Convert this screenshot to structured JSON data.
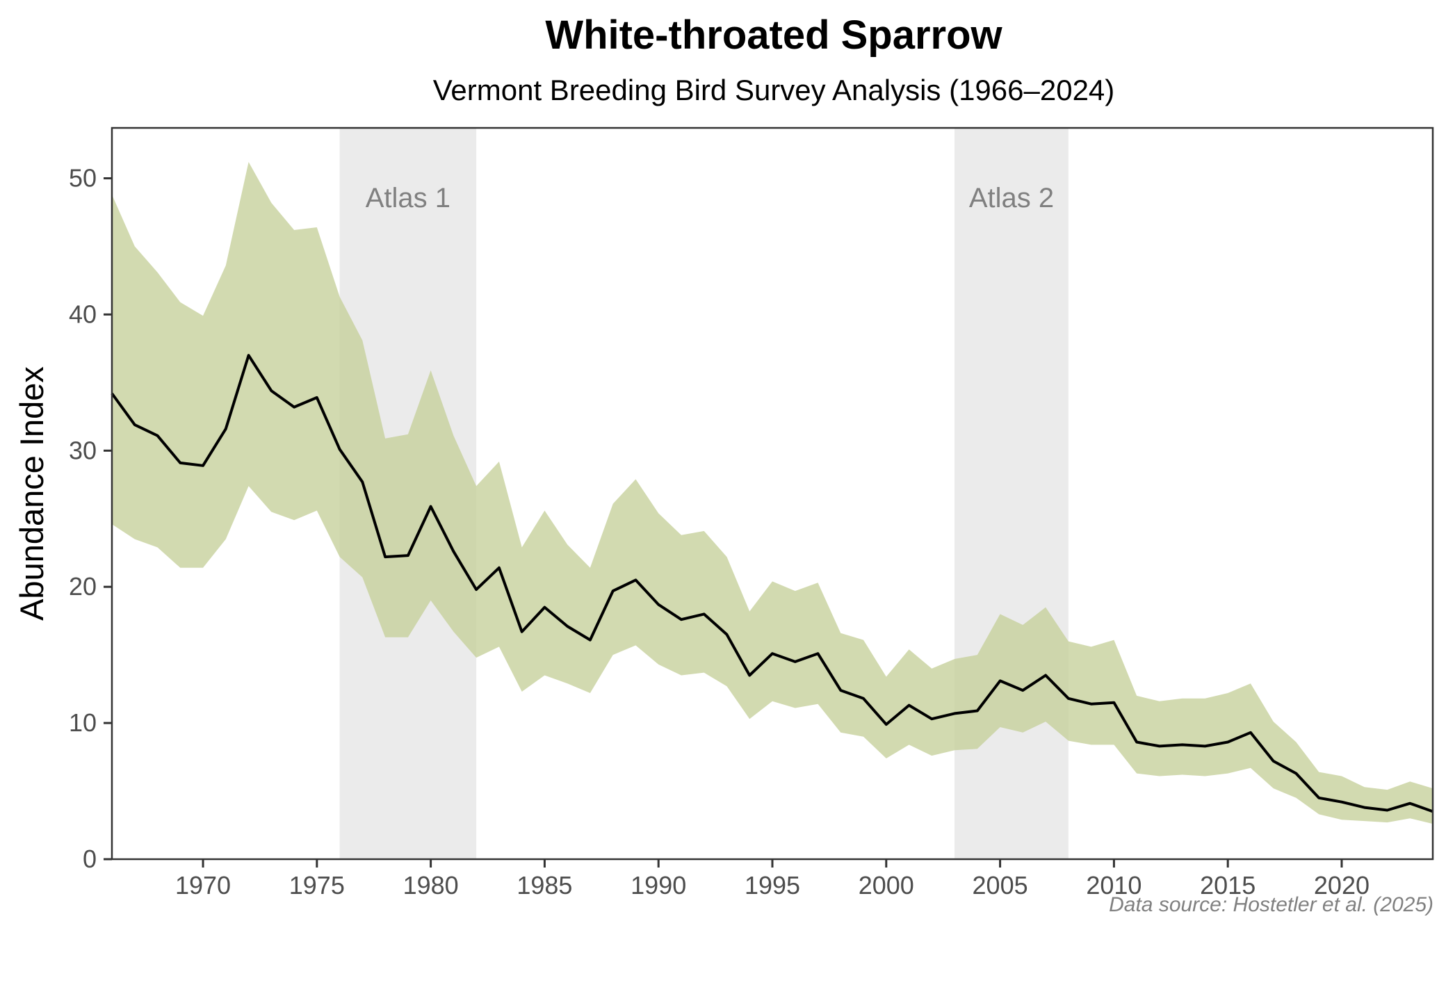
{
  "chart_data": {
    "type": "line",
    "title": "White-throated Sparrow",
    "subtitle": "Vermont Breeding Bird Survey Analysis (1966–2024)",
    "xlabel": "",
    "ylabel": "Abundance Index",
    "xlim": [
      1966,
      2024
    ],
    "ylim": [
      0,
      53.7
    ],
    "x_ticks": [
      1970,
      1975,
      1980,
      1985,
      1990,
      1995,
      2000,
      2005,
      2010,
      2015,
      2020
    ],
    "x_tick_labels": [
      "1970",
      "1975",
      "1980",
      "1985",
      "1990",
      "1995",
      "2000",
      "2005",
      "2010",
      "2015",
      "2020"
    ],
    "y_ticks": [
      0,
      10,
      20,
      30,
      40,
      50
    ],
    "y_tick_labels": [
      "0",
      "10",
      "20",
      "30",
      "40",
      "50"
    ],
    "grid": false,
    "legend": "none",
    "source": "Data source: Hostetler et al. (2025)",
    "shaded_periods": [
      {
        "label": "Atlas 1",
        "start": 1976,
        "end": 1982
      },
      {
        "label": "Atlas 2",
        "start": 2003,
        "end": 2008
      }
    ],
    "colors": {
      "band": "#c5d09a",
      "line": "#000000",
      "atlas_shade": "#ebebeb",
      "atlas_text": "#808080",
      "axis": "#333333"
    },
    "x": [
      1966,
      1967,
      1968,
      1969,
      1970,
      1971,
      1972,
      1973,
      1974,
      1975,
      1976,
      1977,
      1978,
      1979,
      1980,
      1981,
      1982,
      1983,
      1984,
      1985,
      1986,
      1987,
      1988,
      1989,
      1990,
      1991,
      1992,
      1993,
      1994,
      1995,
      1996,
      1997,
      1998,
      1999,
      2000,
      2001,
      2002,
      2003,
      2004,
      2005,
      2006,
      2007,
      2008,
      2009,
      2010,
      2011,
      2012,
      2013,
      2014,
      2015,
      2016,
      2017,
      2018,
      2019,
      2020,
      2021,
      2022,
      2023,
      2024
    ],
    "series": [
      {
        "name": "Abundance Index",
        "values": [
          34.2,
          31.9,
          31.1,
          29.1,
          28.9,
          31.6,
          37.0,
          34.4,
          33.2,
          33.9,
          30.1,
          27.7,
          22.2,
          22.3,
          25.9,
          22.6,
          19.8,
          21.4,
          16.7,
          18.5,
          17.1,
          16.1,
          19.7,
          20.5,
          18.7,
          17.6,
          18.0,
          16.5,
          13.5,
          15.1,
          14.5,
          15.1,
          12.4,
          11.8,
          9.9,
          11.3,
          10.3,
          10.7,
          10.9,
          13.1,
          12.4,
          13.5,
          11.8,
          11.4,
          11.5,
          8.6,
          8.3,
          8.4,
          8.3,
          8.6,
          9.3,
          7.2,
          6.3,
          4.5,
          4.2,
          3.8,
          3.6,
          4.1,
          3.5
        ]
      },
      {
        "name": "Upper CI",
        "values": [
          48.8,
          45.0,
          43.1,
          40.9,
          39.9,
          43.6,
          51.2,
          48.2,
          46.2,
          46.4,
          41.3,
          38.1,
          30.9,
          31.2,
          35.9,
          31.1,
          27.4,
          29.2,
          22.9,
          25.6,
          23.1,
          21.4,
          26.1,
          27.9,
          25.4,
          23.8,
          24.1,
          22.2,
          18.2,
          20.4,
          19.7,
          20.3,
          16.6,
          16.1,
          13.4,
          15.4,
          14.0,
          14.7,
          15.0,
          18.0,
          17.2,
          18.5,
          16.0,
          15.6,
          16.1,
          12.0,
          11.6,
          11.8,
          11.8,
          12.2,
          12.9,
          10.1,
          8.6,
          6.4,
          6.1,
          5.3,
          5.1,
          5.7,
          5.2
        ]
      },
      {
        "name": "Lower CI",
        "values": [
          24.6,
          23.5,
          22.9,
          21.4,
          21.4,
          23.5,
          27.4,
          25.5,
          24.9,
          25.6,
          22.2,
          20.7,
          16.3,
          16.3,
          19.0,
          16.7,
          14.8,
          15.6,
          12.3,
          13.5,
          12.9,
          12.2,
          15.0,
          15.7,
          14.3,
          13.5,
          13.7,
          12.7,
          10.3,
          11.6,
          11.1,
          11.4,
          9.3,
          9.0,
          7.4,
          8.4,
          7.6,
          8.0,
          8.1,
          9.7,
          9.3,
          10.1,
          8.7,
          8.4,
          8.4,
          6.3,
          6.1,
          6.2,
          6.1,
          6.3,
          6.7,
          5.2,
          4.5,
          3.3,
          2.9,
          2.8,
          2.7,
          3.0,
          2.6
        ]
      }
    ]
  }
}
